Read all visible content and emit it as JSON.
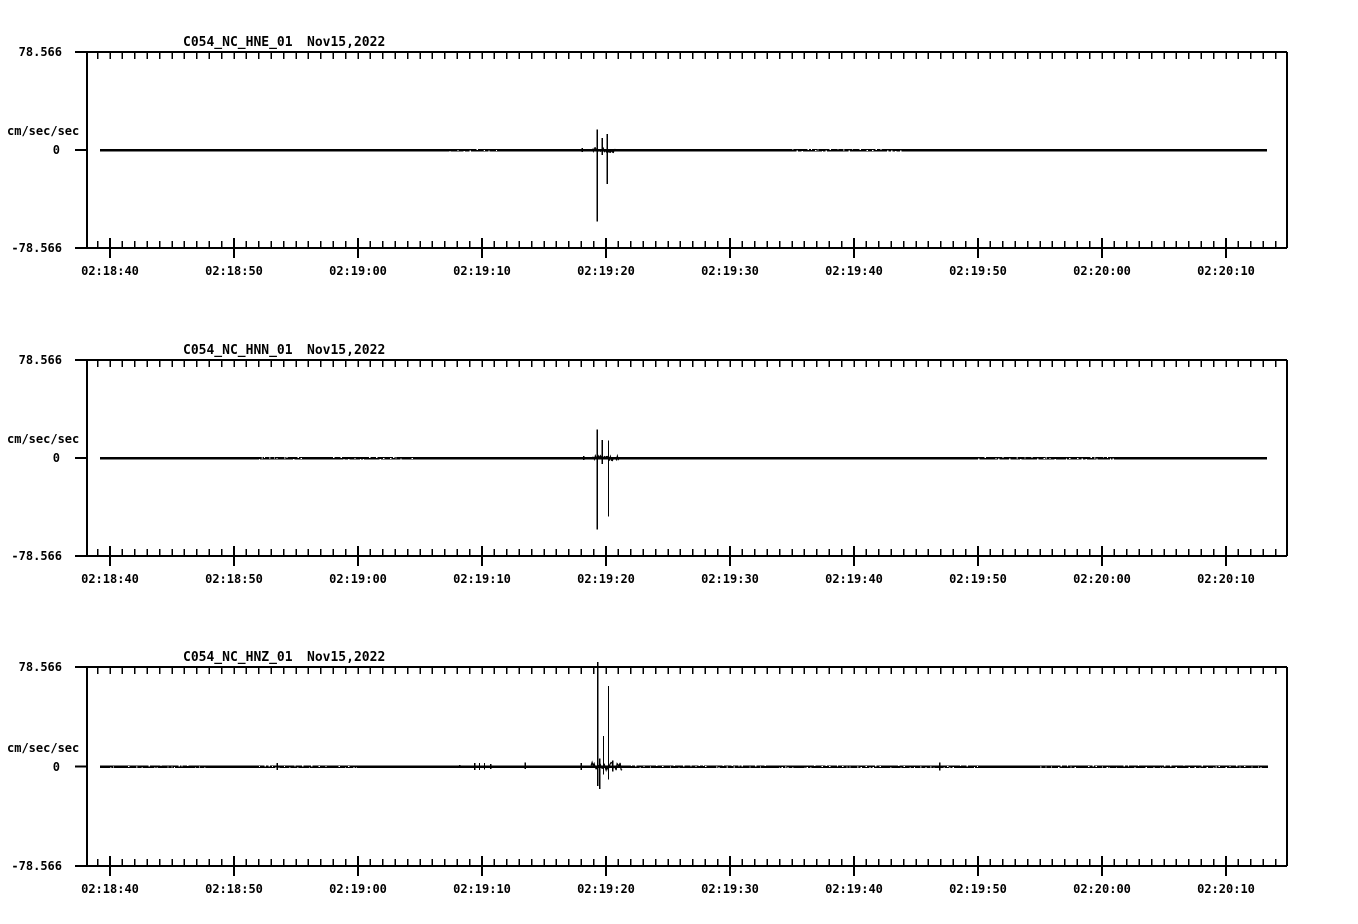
{
  "meta": {
    "background_color": "#ffffff",
    "ink_color": "#000000",
    "description": "Three-channel strong-motion seismogram traces"
  },
  "chart_data": [
    {
      "type": "line",
      "kind": "seismogram-trace",
      "station": "C054_NC_HNE_01",
      "date": "Nov15,2022",
      "units_label": "cm/sec/sec",
      "y_max_label": "78.566",
      "y_zero_label": "0",
      "y_min_label": "-78.566",
      "ylim": [
        -78.566,
        78.566
      ],
      "x_tick_labels": [
        "02:18:40",
        "02:18:50",
        "02:19:00",
        "02:19:10",
        "02:19:20",
        "02:19:30",
        "02:19:40",
        "02:19:50",
        "02:20:00",
        "02:20:10"
      ],
      "x_major_interval_sec": 10,
      "x_minor_interval_sec": 1,
      "trace_span_sec": [
        -0.8,
        93.3
      ],
      "baseline": 0,
      "spikes": [
        {
          "t": 8.6,
          "up": 0.8,
          "down": 0.8
        },
        {
          "t": 29.3,
          "up": 1.0,
          "down": 0.8
        },
        {
          "t": 30.1,
          "up": 1.0,
          "down": 0.6
        },
        {
          "t": 30.5,
          "up": 0.8,
          "down": 0.6
        },
        {
          "t": 38.1,
          "up": 1.6,
          "down": 1.6
        },
        {
          "t": 39.3,
          "up": 16.6,
          "down": 57.5
        },
        {
          "t": 39.7,
          "up": 9.6,
          "down": 4.0
        },
        {
          "t": 40.1,
          "up": 12.8,
          "down": 27.3
        }
      ],
      "noise_bands": [
        {
          "t0": 38.9,
          "t1": 40.8,
          "amp": 2.0
        }
      ],
      "texture_bands": [
        {
          "t0": 55.0,
          "t1": 64.5
        },
        {
          "t0": 27.0,
          "t1": 31.5
        }
      ]
    },
    {
      "type": "line",
      "kind": "seismogram-trace",
      "station": "C054_NC_HNN_01",
      "date": "Nov15,2022",
      "units_label": "cm/sec/sec",
      "y_max_label": "78.566",
      "y_zero_label": "0",
      "y_min_label": "-78.566",
      "ylim": [
        -78.566,
        78.566
      ],
      "x_tick_labels": [
        "02:18:40",
        "02:18:50",
        "02:19:00",
        "02:19:10",
        "02:19:20",
        "02:19:30",
        "02:19:40",
        "02:19:50",
        "02:20:00",
        "02:20:10"
      ],
      "x_major_interval_sec": 10,
      "x_minor_interval_sec": 1,
      "trace_span_sec": [
        -0.8,
        93.3
      ],
      "baseline": 0,
      "spikes": [
        {
          "t": 38.2,
          "up": 1.6,
          "down": 1.6
        },
        {
          "t": 39.3,
          "up": 22.9,
          "down": 57.3
        },
        {
          "t": 39.7,
          "up": 14.4,
          "down": 4.8
        },
        {
          "t": 40.2,
          "up": 14.0,
          "down": 46.9
        }
      ],
      "noise_bands": [
        {
          "t0": 38.9,
          "t1": 41.0,
          "amp": 2.2
        }
      ],
      "texture_bands": [
        {
          "t0": 12.0,
          "t1": 15.5
        },
        {
          "t0": 18.0,
          "t1": 24.5
        },
        {
          "t0": 70.0,
          "t1": 81.0
        }
      ]
    },
    {
      "type": "line",
      "kind": "seismogram-trace",
      "station": "C054_NC_HNZ_01",
      "date": "Nov15,2022",
      "units_label": "cm/sec/sec",
      "y_max_label": "78.566",
      "y_zero_label": "0",
      "y_min_label": "-78.566",
      "ylim": [
        -78.566,
        78.566
      ],
      "x_tick_labels": [
        "02:18:40",
        "02:18:50",
        "02:19:00",
        "02:19:10",
        "02:19:20",
        "02:19:30",
        "02:19:40",
        "02:19:50",
        "02:20:00",
        "02:20:10"
      ],
      "x_major_interval_sec": 10,
      "x_minor_interval_sec": 1,
      "trace_span_sec": [
        -0.8,
        93.4
      ],
      "baseline": 0,
      "spikes": [
        {
          "t": 4.6,
          "up": 0.8,
          "down": 0.8
        },
        {
          "t": 5.9,
          "up": 0.8,
          "down": 0.8
        },
        {
          "t": 13.5,
          "up": 2.6,
          "down": 2.6
        },
        {
          "t": 16.0,
          "up": 0.8,
          "down": 0.8
        },
        {
          "t": 21.8,
          "up": 0.8,
          "down": 0.8
        },
        {
          "t": 26.6,
          "up": 0.8,
          "down": 0.8
        },
        {
          "t": 28.2,
          "up": 1.3,
          "down": 1.3
        },
        {
          "t": 29.4,
          "up": 2.6,
          "down": 2.6
        },
        {
          "t": 29.8,
          "up": 2.9,
          "down": 2.9
        },
        {
          "t": 30.2,
          "up": 2.6,
          "down": 2.4
        },
        {
          "t": 30.7,
          "up": 2.1,
          "down": 1.8
        },
        {
          "t": 33.5,
          "up": 3.2,
          "down": 2.0
        },
        {
          "t": 38.0,
          "up": 2.6,
          "down": 2.6
        },
        {
          "t": 39.35,
          "up": 82.7,
          "down": 15.2
        },
        {
          "t": 39.5,
          "up": 6.4,
          "down": 17.6
        },
        {
          "t": 39.8,
          "up": 24.1,
          "down": 6.4
        },
        {
          "t": 40.2,
          "up": 63.4,
          "down": 10.4
        },
        {
          "t": 40.55,
          "up": 4.8,
          "down": 4.0
        },
        {
          "t": 66.9,
          "up": 3.2,
          "down": 3.2
        }
      ],
      "noise_bands": [
        {
          "t0": 38.8,
          "t1": 41.3,
          "amp": 3.5
        }
      ],
      "texture_bands": [
        {
          "t0": 0.0,
          "t1": 8.0
        },
        {
          "t0": 12.0,
          "t1": 20.0
        },
        {
          "t0": 42.0,
          "t1": 55.0
        },
        {
          "t0": 56.0,
          "t1": 70.0
        },
        {
          "t0": 75.0,
          "t1": 93.0
        }
      ]
    }
  ]
}
